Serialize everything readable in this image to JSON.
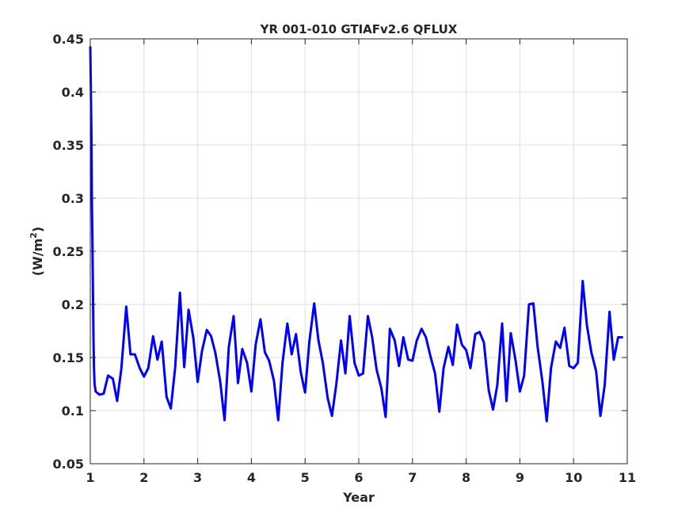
{
  "chart_data": {
    "type": "line",
    "title": "YR 001-010 GTIAFv2.6 QFLUX",
    "xlabel": "Year",
    "ylabel": "(W/m",
    "ylabel_superscript": "2",
    "ylabel_suffix": ")",
    "xlim": [
      1,
      11
    ],
    "ylim": [
      0.05,
      0.45
    ],
    "xticks": [
      "1",
      "2",
      "3",
      "4",
      "5",
      "6",
      "7",
      "8",
      "9",
      "10",
      "11"
    ],
    "yticks": [
      "0.05",
      "0.1",
      "0.15",
      "0.2",
      "0.25",
      "0.3",
      "0.35",
      "0.4",
      "0.45"
    ],
    "grid": true,
    "series": [
      {
        "color": "#0000ff",
        "x": [
          1.0,
          1.01,
          1.02,
          1.03,
          1.04,
          1.05,
          1.06,
          1.07,
          1.08,
          1.1,
          1.17,
          1.25,
          1.33,
          1.42,
          1.5,
          1.58,
          1.67,
          1.75,
          1.83,
          1.92,
          2.0,
          2.08,
          2.17,
          2.25,
          2.33,
          2.42,
          2.5,
          2.58,
          2.67,
          2.75,
          2.83,
          2.92,
          3.0,
          3.08,
          3.17,
          3.25,
          3.33,
          3.42,
          3.5,
          3.58,
          3.67,
          3.75,
          3.83,
          3.92,
          4.0,
          4.08,
          4.17,
          4.25,
          4.33,
          4.42,
          4.5,
          4.58,
          4.67,
          4.75,
          4.83,
          4.92,
          5.0,
          5.08,
          5.17,
          5.25,
          5.33,
          5.42,
          5.5,
          5.58,
          5.67,
          5.75,
          5.83,
          5.92,
          6.0,
          6.08,
          6.17,
          6.25,
          6.33,
          6.42,
          6.5,
          6.58,
          6.67,
          6.75,
          6.83,
          6.92,
          7.0,
          7.08,
          7.17,
          7.25,
          7.33,
          7.42,
          7.5,
          7.58,
          7.67,
          7.75,
          7.83,
          7.92,
          8.0,
          8.08,
          8.17,
          8.25,
          8.33,
          8.42,
          8.5,
          8.58,
          8.67,
          8.75,
          8.83,
          8.92,
          9.0,
          9.08,
          9.17,
          9.25,
          9.33,
          9.42,
          9.5,
          9.58,
          9.67,
          9.75,
          9.83,
          9.92,
          10.0,
          10.08,
          10.17,
          10.25,
          10.33,
          10.42,
          10.5,
          10.58,
          10.67,
          10.75,
          10.83,
          10.92
        ],
        "y": [
          0.443,
          0.405,
          0.36,
          0.3,
          0.26,
          0.21,
          0.165,
          0.14,
          0.125,
          0.118,
          0.115,
          0.116,
          0.133,
          0.13,
          0.109,
          0.14,
          0.198,
          0.153,
          0.153,
          0.14,
          0.132,
          0.14,
          0.17,
          0.148,
          0.165,
          0.113,
          0.102,
          0.14,
          0.211,
          0.141,
          0.195,
          0.168,
          0.127,
          0.156,
          0.176,
          0.17,
          0.154,
          0.127,
          0.091,
          0.16,
          0.189,
          0.126,
          0.158,
          0.145,
          0.118,
          0.162,
          0.186,
          0.155,
          0.147,
          0.128,
          0.091,
          0.145,
          0.182,
          0.153,
          0.172,
          0.136,
          0.117,
          0.165,
          0.201,
          0.166,
          0.145,
          0.112,
          0.095,
          0.124,
          0.166,
          0.135,
          0.189,
          0.145,
          0.133,
          0.135,
          0.189,
          0.169,
          0.139,
          0.121,
          0.094,
          0.177,
          0.166,
          0.142,
          0.169,
          0.148,
          0.147,
          0.166,
          0.177,
          0.169,
          0.152,
          0.135,
          0.099,
          0.14,
          0.16,
          0.143,
          0.181,
          0.162,
          0.157,
          0.14,
          0.172,
          0.174,
          0.164,
          0.119,
          0.101,
          0.124,
          0.182,
          0.109,
          0.173,
          0.147,
          0.118,
          0.133,
          0.2,
          0.201,
          0.16,
          0.127,
          0.09,
          0.14,
          0.165,
          0.159,
          0.178,
          0.142,
          0.14,
          0.145,
          0.222,
          0.18,
          0.155,
          0.137,
          0.095,
          0.124,
          0.193,
          0.148,
          0.169,
          0.169
        ]
      }
    ]
  }
}
